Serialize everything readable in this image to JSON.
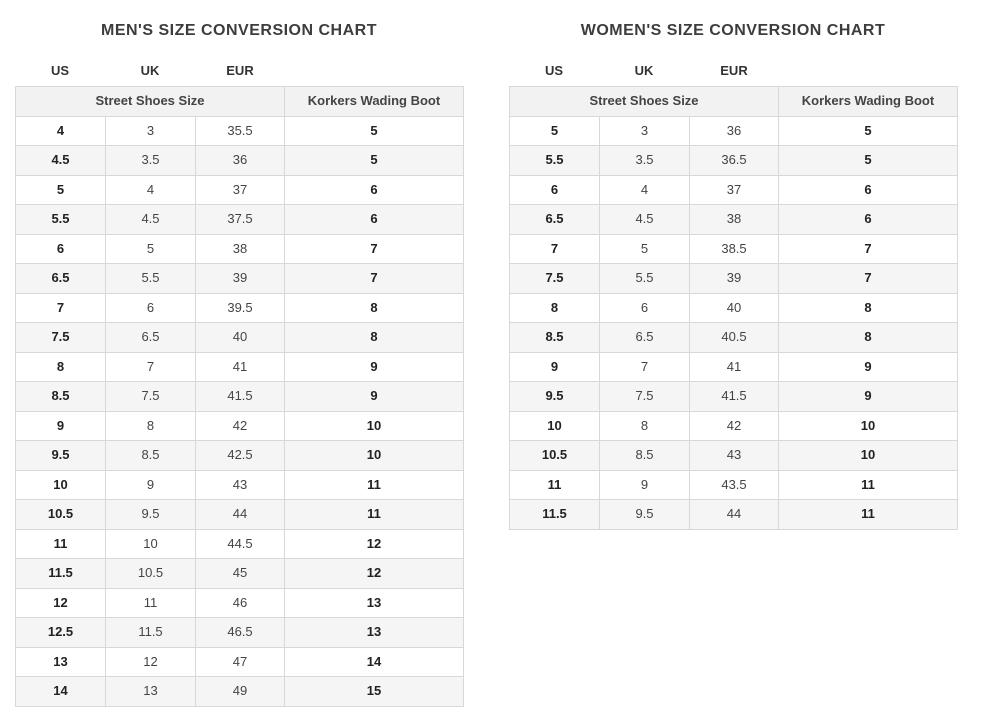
{
  "men": {
    "title": "MEN'S SIZE CONVERSION CHART",
    "unit_labels": {
      "us": "US",
      "uk": "UK",
      "eur": "EUR"
    },
    "header": {
      "street": "Street Shoes Size",
      "boot": "Korkers Wading Boot"
    },
    "rows": [
      {
        "us": "4",
        "uk": "3",
        "eur": "35.5",
        "boot": "5"
      },
      {
        "us": "4.5",
        "uk": "3.5",
        "eur": "36",
        "boot": "5"
      },
      {
        "us": "5",
        "uk": "4",
        "eur": "37",
        "boot": "6"
      },
      {
        "us": "5.5",
        "uk": "4.5",
        "eur": "37.5",
        "boot": "6"
      },
      {
        "us": "6",
        "uk": "5",
        "eur": "38",
        "boot": "7"
      },
      {
        "us": "6.5",
        "uk": "5.5",
        "eur": "39",
        "boot": "7"
      },
      {
        "us": "7",
        "uk": "6",
        "eur": "39.5",
        "boot": "8"
      },
      {
        "us": "7.5",
        "uk": "6.5",
        "eur": "40",
        "boot": "8"
      },
      {
        "us": "8",
        "uk": "7",
        "eur": "41",
        "boot": "9"
      },
      {
        "us": "8.5",
        "uk": "7.5",
        "eur": "41.5",
        "boot": "9"
      },
      {
        "us": "9",
        "uk": "8",
        "eur": "42",
        "boot": "10"
      },
      {
        "us": "9.5",
        "uk": "8.5",
        "eur": "42.5",
        "boot": "10"
      },
      {
        "us": "10",
        "uk": "9",
        "eur": "43",
        "boot": "11"
      },
      {
        "us": "10.5",
        "uk": "9.5",
        "eur": "44",
        "boot": "11"
      },
      {
        "us": "11",
        "uk": "10",
        "eur": "44.5",
        "boot": "12"
      },
      {
        "us": "11.5",
        "uk": "10.5",
        "eur": "45",
        "boot": "12"
      },
      {
        "us": "12",
        "uk": "11",
        "eur": "46",
        "boot": "13"
      },
      {
        "us": "12.5",
        "uk": "11.5",
        "eur": "46.5",
        "boot": "13"
      },
      {
        "us": "13",
        "uk": "12",
        "eur": "47",
        "boot": "14"
      },
      {
        "us": "14",
        "uk": "13",
        "eur": "49",
        "boot": "15"
      }
    ]
  },
  "women": {
    "title": "WOMEN'S SIZE CONVERSION CHART",
    "unit_labels": {
      "us": "US",
      "uk": "UK",
      "eur": "EUR"
    },
    "header": {
      "street": "Street Shoes Size",
      "boot": "Korkers Wading Boot"
    },
    "rows": [
      {
        "us": "5",
        "uk": "3",
        "eur": "36",
        "boot": "5"
      },
      {
        "us": "5.5",
        "uk": "3.5",
        "eur": "36.5",
        "boot": "5"
      },
      {
        "us": "6",
        "uk": "4",
        "eur": "37",
        "boot": "6"
      },
      {
        "us": "6.5",
        "uk": "4.5",
        "eur": "38",
        "boot": "6"
      },
      {
        "us": "7",
        "uk": "5",
        "eur": "38.5",
        "boot": "7"
      },
      {
        "us": "7.5",
        "uk": "5.5",
        "eur": "39",
        "boot": "7"
      },
      {
        "us": "8",
        "uk": "6",
        "eur": "40",
        "boot": "8"
      },
      {
        "us": "8.5",
        "uk": "6.5",
        "eur": "40.5",
        "boot": "8"
      },
      {
        "us": "9",
        "uk": "7",
        "eur": "41",
        "boot": "9"
      },
      {
        "us": "9.5",
        "uk": "7.5",
        "eur": "41.5",
        "boot": "9"
      },
      {
        "us": "10",
        "uk": "8",
        "eur": "42",
        "boot": "10"
      },
      {
        "us": "10.5",
        "uk": "8.5",
        "eur": "43",
        "boot": "10"
      },
      {
        "us": "11",
        "uk": "9",
        "eur": "43.5",
        "boot": "11"
      },
      {
        "us": "11.5",
        "uk": "9.5",
        "eur": "44",
        "boot": "11"
      }
    ]
  }
}
